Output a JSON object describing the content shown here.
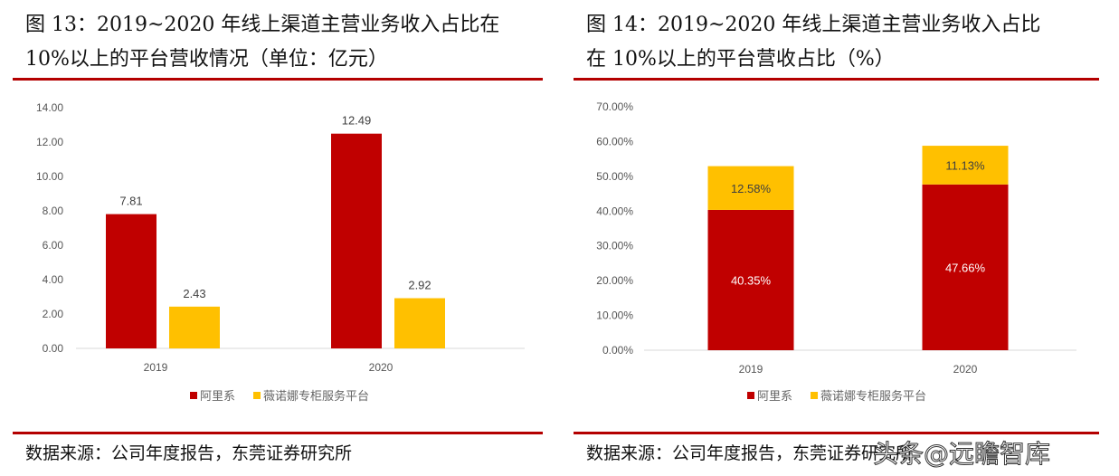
{
  "left": {
    "title_line1": "图 13：2019~2020 年线上渠道主营业务收入占比在",
    "title_line2": "10%以上的平台营收情况（单位：亿元）",
    "source": "数据来源：公司年度报告，东莞证券研究所"
  },
  "right": {
    "title_line1": "图 14：2019~2020 年线上渠道主营业务收入占比",
    "title_line2": "在 10%以上的平台营收占比（%）",
    "source": "数据来源：公司年度报告，东莞证券研究所"
  },
  "watermark": "头条@远瞻智库",
  "colors": {
    "alibaba": "#c00000",
    "vinona": "#ffc000",
    "rule": "#b40000"
  },
  "chart_data": [
    {
      "type": "bar",
      "categories": [
        "2019",
        "2020"
      ],
      "series": [
        {
          "name": "阿里系",
          "values": [
            7.81,
            12.49
          ]
        },
        {
          "name": "薇诺娜专柜服务平台",
          "values": [
            2.43,
            2.92
          ]
        }
      ],
      "ylim": [
        0,
        14
      ],
      "yticks": [
        "0.00",
        "2.00",
        "4.00",
        "6.00",
        "8.00",
        "10.00",
        "12.00",
        "14.00"
      ],
      "data_labels": [
        [
          "7.81",
          "12.49"
        ],
        [
          "2.43",
          "2.92"
        ]
      ],
      "legend": "bottom",
      "grid": false
    },
    {
      "type": "bar",
      "stacked": true,
      "categories": [
        "2019",
        "2020"
      ],
      "series": [
        {
          "name": "阿里系",
          "values": [
            40.35,
            47.66
          ]
        },
        {
          "name": "薇诺娜专柜服务平台",
          "values": [
            12.58,
            11.13
          ]
        }
      ],
      "ylim": [
        0,
        70
      ],
      "yticks": [
        "0.00%",
        "10.00%",
        "20.00%",
        "30.00%",
        "40.00%",
        "50.00%",
        "60.00%",
        "70.00%"
      ],
      "data_labels": [
        [
          "40.35%",
          "47.66%"
        ],
        [
          "12.58%",
          "11.13%"
        ]
      ],
      "legend": "bottom",
      "grid": false
    }
  ]
}
